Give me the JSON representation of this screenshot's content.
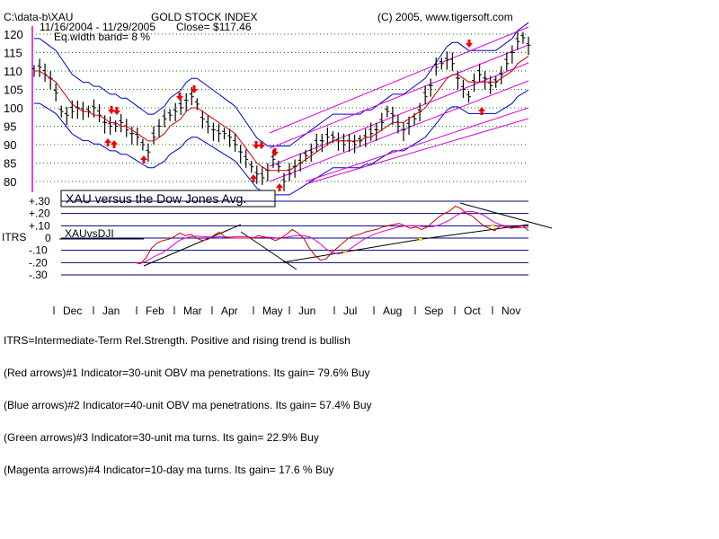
{
  "header": {
    "path": "C:\\data-b\\XAU",
    "date_range": "11/16/2004 - 11/29/2005",
    "title": "GOLD STOCK INDEX",
    "close": "Close= $117.46",
    "band": "Eq.width band= 8 %",
    "copyright": "(C) 2005, www.tigersoft.com"
  },
  "price_axis": {
    "ticks": [
      "120",
      "115",
      "110",
      "105",
      "100",
      "95",
      "90",
      "85",
      "80"
    ],
    "values": [
      120,
      115,
      110,
      105,
      100,
      95,
      90,
      85,
      80
    ]
  },
  "itrs_axis": {
    "label": "ITRS",
    "ticks": [
      "+.30",
      "+.20",
      "+.10",
      "0",
      "-.10",
      "-.20",
      "-.30"
    ],
    "values": [
      0.3,
      0.2,
      0.1,
      0,
      -0.1,
      -0.2,
      -0.3
    ]
  },
  "comparison_box": "XAU versus the Dow Jones Avg.",
  "itrs_series_label": "XAUvsDJI",
  "months": [
    "Dec",
    "Jan",
    "Feb",
    "Mar",
    "Apr",
    "May",
    "Jun",
    "Jul",
    "Aug",
    "Sep",
    "Oct",
    "Nov"
  ],
  "notes": [
    "ITRS=Intermediate-Term Rel.Strength. Positive and rising trend is bullish",
    "(Red arrows)#1 Indicator=30-unit OBV ma penetrations. Its gain= 79.6% Buy",
    "(Blue arrows)#2 Indicator=40-unit OBV ma penetrations. Its gain= 57.4% Buy",
    "(Green arrows)#3 Indicator=30-unit ma turns. Its gain= 22.9% Buy",
    "(Magenta arrows)#4 Indicator=10-day ma turns. Its gain= 17.6 % Buy"
  ],
  "colors": {
    "price_bars": "#000000",
    "moving_average": "#cc0000",
    "band": "#0000cc",
    "trend_channel": "#dd00dd",
    "grid": "#008000",
    "itrs_line": "#cc0000",
    "itrs_ma": "#dd00dd",
    "arrow": "#ee0000",
    "itrs_grid": "#000080"
  },
  "chart_data": [
    {
      "type": "line",
      "title": "GOLD STOCK INDEX",
      "ylim": [
        78,
        121
      ],
      "series": [
        {
          "values": [
            110,
            111,
            109,
            108,
            104,
            99,
            98,
            99,
            100,
            99,
            99,
            100,
            98,
            96,
            95,
            95,
            96,
            94,
            93,
            92,
            90,
            88,
            92,
            95,
            97,
            98,
            99,
            100,
            102,
            103,
            101,
            97,
            95,
            94,
            93,
            93,
            92,
            90,
            88,
            86,
            84,
            82,
            81,
            83,
            86,
            84,
            80,
            82,
            84,
            85,
            87,
            88,
            90,
            91,
            92,
            92,
            91,
            90,
            91,
            90,
            91,
            92,
            93,
            94,
            96,
            99,
            98,
            95,
            94,
            95,
            97,
            99,
            103,
            106,
            111,
            112,
            113,
            112,
            108,
            105,
            103,
            107,
            109,
            108,
            106,
            107,
            109,
            112,
            115,
            118,
            119,
            117
          ]
        },
        {
          "values": [
            110,
            110,
            109,
            108,
            107,
            105,
            103,
            101,
            100,
            99,
            99,
            98,
            98,
            97,
            96,
            96,
            95,
            95,
            94,
            93,
            92,
            91,
            91,
            92,
            93,
            95,
            96,
            97,
            99,
            100,
            100,
            99,
            98,
            97,
            96,
            95,
            94,
            93,
            91,
            89,
            87,
            85,
            84,
            83,
            83,
            83,
            83,
            83,
            84,
            85,
            86,
            87,
            88,
            89,
            90,
            91,
            91,
            91,
            91,
            91,
            91,
            92,
            92,
            93,
            94,
            95,
            96,
            96,
            96,
            97,
            98,
            99,
            100,
            102,
            104,
            106,
            108,
            109,
            109,
            108,
            107,
            107,
            107,
            107,
            107,
            107,
            108,
            109,
            110,
            112,
            113,
            114
          ]
        }
      ]
    },
    {
      "type": "line",
      "title": "XAU versus the Dow Jones Avg.",
      "ylabel": "ITRS",
      "ylim": [
        -0.3,
        0.3
      ],
      "series": [
        {
          "name": "XAUvsDJI",
          "values": [
            -0.2,
            -0.21,
            -0.16,
            -0.08,
            -0.04,
            -0.02,
            -0.01,
            0.01,
            0.04,
            0.02,
            0.03,
            0.0,
            -0.02,
            -0.01,
            0.02,
            0.05,
            0.01,
            0.0,
            0.0,
            0.0,
            0.0,
            0.0,
            0.02,
            0.01,
            0.0,
            -0.02,
            0.0,
            0.03,
            0.07,
            0.04,
            0.0,
            -0.08,
            -0.14,
            -0.18,
            -0.17,
            -0.12,
            -0.08,
            -0.04,
            0.0,
            0.02,
            0.03,
            0.05,
            0.06,
            0.07,
            0.09,
            0.1,
            0.11,
            0.12,
            0.1,
            0.08,
            0.09,
            0.07,
            0.09,
            0.13,
            0.17,
            0.2,
            0.22,
            0.26,
            0.24,
            0.2,
            0.18,
            0.14,
            0.1,
            0.08,
            0.06,
            0.1,
            0.09,
            0.08,
            0.09,
            0.1,
            0.06
          ]
        }
      ]
    }
  ]
}
